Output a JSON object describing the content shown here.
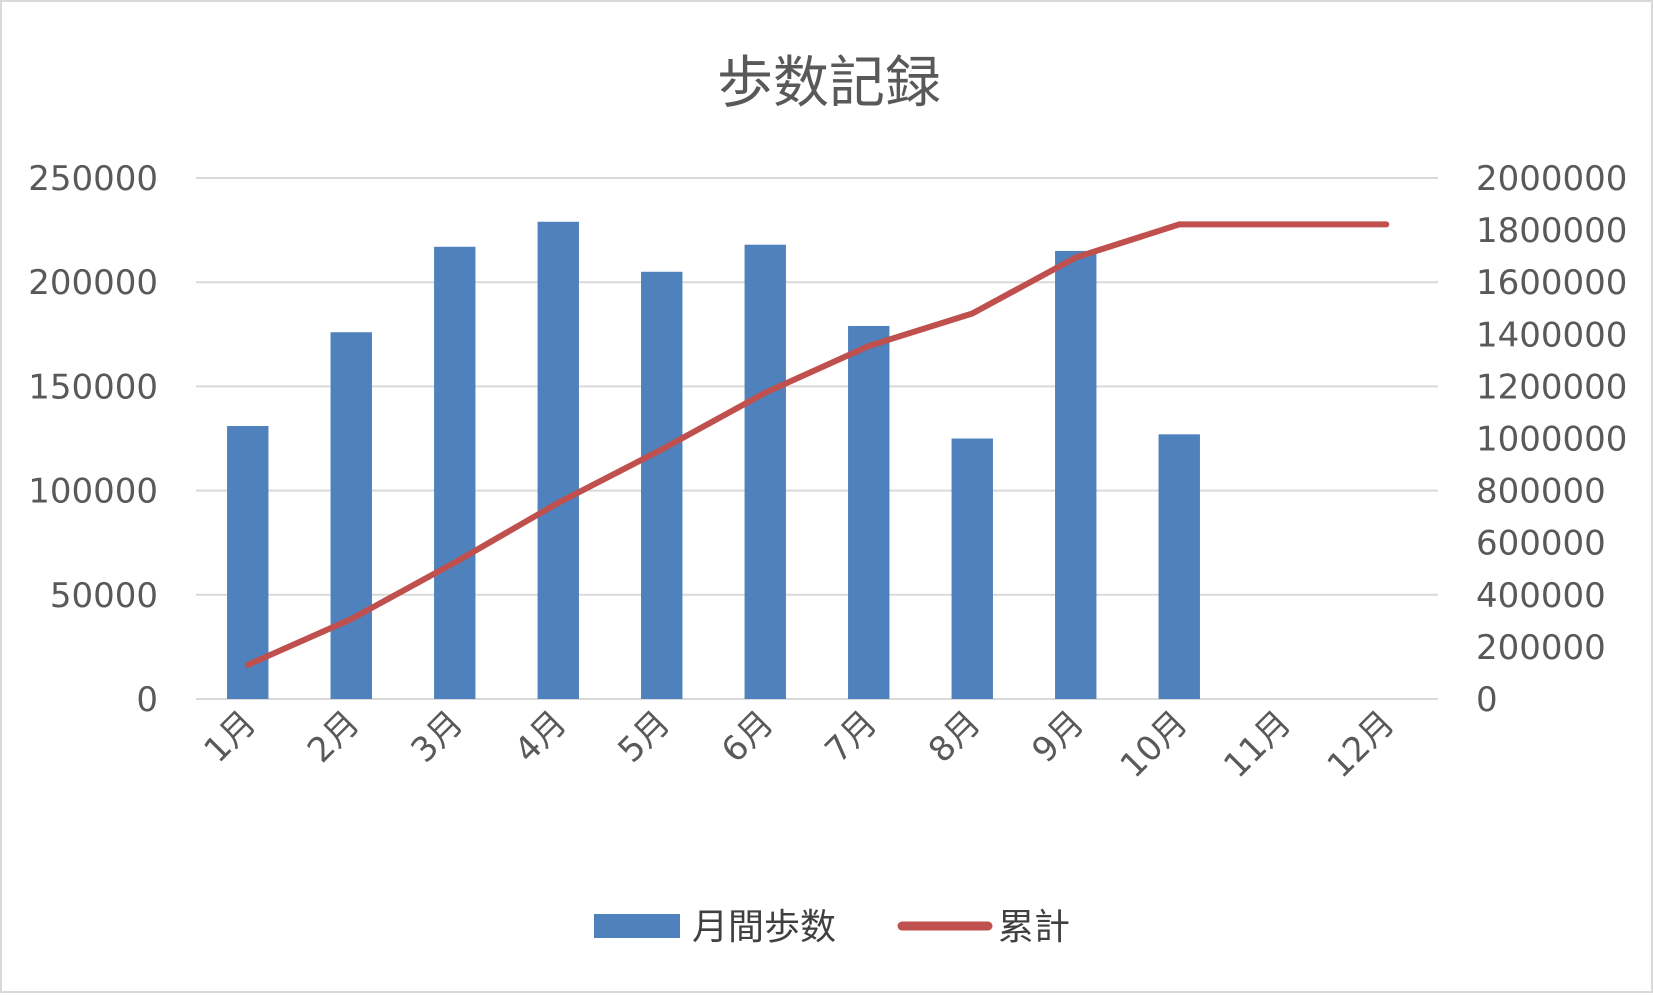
{
  "chart_data": {
    "type": "bar",
    "title": "歩数記録",
    "categories": [
      "1月",
      "2月",
      "3月",
      "4月",
      "5月",
      "6月",
      "7月",
      "8月",
      "9月",
      "10月",
      "11月",
      "12月"
    ],
    "series": [
      {
        "name": "月間歩数",
        "kind": "bar",
        "axis": "left",
        "color": "#4f81bd",
        "values": [
          131000,
          176000,
          217000,
          229000,
          205000,
          218000,
          179000,
          125000,
          215000,
          127000,
          null,
          null
        ]
      },
      {
        "name": "累計",
        "kind": "line",
        "axis": "right",
        "color": "#c0504d",
        "values": [
          131000,
          307000,
          524000,
          753000,
          958000,
          1176000,
          1355000,
          1480000,
          1695000,
          1822000,
          1822000,
          1822000
        ]
      }
    ],
    "y_left": {
      "ylim": [
        0,
        250000
      ],
      "ticks": [
        "0",
        "50000",
        "100000",
        "150000",
        "200000",
        "250000"
      ]
    },
    "y_right": {
      "ylim": [
        0,
        2000000
      ],
      "ticks": [
        "0",
        "200000",
        "400000",
        "600000",
        "800000",
        "1000000",
        "1200000",
        "1400000",
        "1600000",
        "1800000",
        "2000000"
      ]
    },
    "grid": true,
    "legend_position": "bottom",
    "gridline_color": "#d9d9d9"
  }
}
